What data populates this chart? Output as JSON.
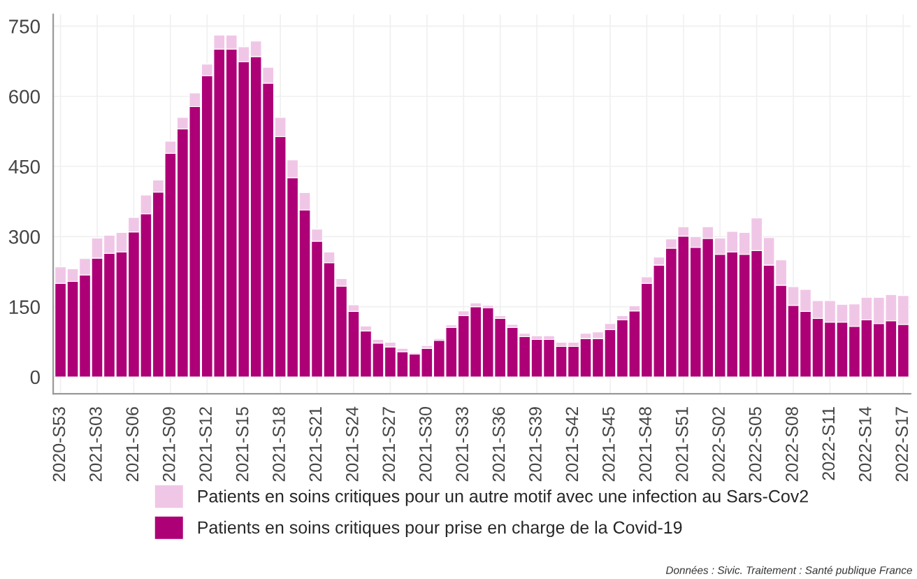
{
  "chart_data": {
    "type": "bar",
    "stacked": true,
    "categories": [
      "2020-S53",
      null,
      null,
      "2021-S03",
      null,
      null,
      "2021-S06",
      null,
      null,
      "2021-S09",
      null,
      null,
      "2021-S12",
      null,
      null,
      "2021-S15",
      null,
      null,
      "2021-S18",
      null,
      null,
      "2021-S21",
      null,
      null,
      "2021-S24",
      null,
      null,
      "2021-S27",
      null,
      null,
      "2021-S30",
      null,
      null,
      "2021-S33",
      null,
      null,
      "2021-S36",
      null,
      null,
      "2021-S39",
      null,
      null,
      "2021-S42",
      null,
      null,
      "2021-S45",
      null,
      null,
      "2021-S48",
      null,
      null,
      "2021-S51",
      null,
      null,
      "2022-S02",
      null,
      null,
      "2022-S05",
      null,
      null,
      "2022-S08",
      null,
      null,
      "2022-S11",
      null,
      null,
      "2022-S14",
      null,
      null,
      "2022-S17"
    ],
    "series": [
      {
        "name": "Patients en soins critiques pour prise en charge de la Covid-19",
        "color": "#ad0077",
        "values": [
          200,
          204,
          218,
          254,
          264,
          267,
          310,
          349,
          395,
          478,
          530,
          578,
          644,
          701,
          701,
          674,
          685,
          628,
          514,
          426,
          357,
          290,
          244,
          194,
          140,
          98,
          72,
          64,
          54,
          49,
          61,
          78,
          106,
          131,
          150,
          148,
          125,
          106,
          86,
          80,
          80,
          65,
          65,
          82,
          82,
          101,
          122,
          141,
          200,
          239,
          275,
          301,
          277,
          296,
          262,
          267,
          262,
          270,
          239,
          196,
          153,
          140,
          125,
          117,
          117,
          108,
          122,
          114,
          120,
          112
        ]
      },
      {
        "name": "Patients en soins critiques pour un autre motif avec une infection au Sars-Cov2",
        "color": "#f0c6e6",
        "values": [
          35,
          27,
          35,
          43,
          39,
          42,
          31,
          40,
          26,
          26,
          25,
          29,
          25,
          30,
          30,
          32,
          33,
          34,
          41,
          38,
          37,
          26,
          23,
          16,
          14,
          11,
          8,
          10,
          7,
          3,
          6,
          4,
          5,
          10,
          8,
          5,
          6,
          6,
          7,
          8,
          8,
          9,
          9,
          11,
          14,
          13,
          9,
          11,
          14,
          17,
          20,
          20,
          23,
          25,
          35,
          44,
          47,
          70,
          59,
          54,
          40,
          47,
          38,
          46,
          38,
          48,
          48,
          56,
          56,
          62
        ]
      }
    ],
    "ylim": [
      -36,
      775
    ],
    "yticks": [
      0,
      150,
      300,
      450,
      600,
      750
    ],
    "grid": true,
    "legend": "bottom",
    "annotations": [
      "Données : Sivic. Traitement : Santé publique France"
    ]
  }
}
